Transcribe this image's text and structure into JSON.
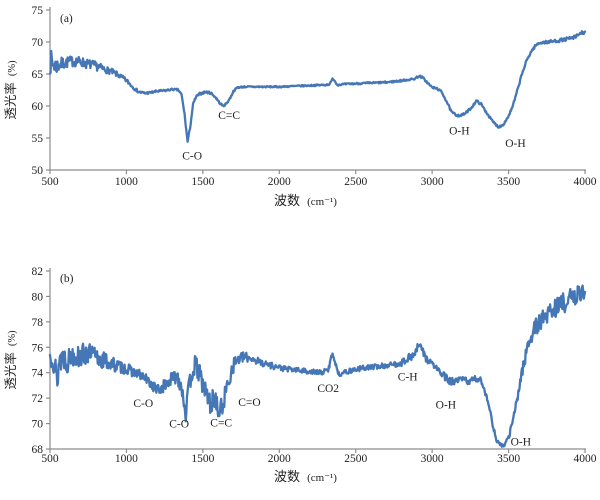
{
  "page": {
    "background": "#ffffff"
  },
  "chart_data": [
    {
      "type": "line",
      "panel_label": "(a)",
      "xlabel": "波数",
      "xlabel_unit": "(cm⁻¹)",
      "ylabel": "透光率",
      "ylabel_unit": "(%)",
      "xlim": [
        500,
        4000
      ],
      "ylim": [
        50,
        75
      ],
      "xticks": [
        500,
        1000,
        1500,
        2000,
        2500,
        3000,
        3500,
        4000
      ],
      "yticks": [
        50,
        55,
        60,
        65,
        70,
        75
      ],
      "line_color": "#4576b5",
      "axis_color": "#8c8c8c",
      "text_color": "#1f1f1f",
      "legend": "none",
      "grid": false,
      "annotations": [
        {
          "text": "C-O",
          "x": 1430,
          "y": 52.3
        },
        {
          "text": "C=C",
          "x": 1672,
          "y": 58.6
        },
        {
          "text": "O-H",
          "x": 3178,
          "y": 56.2
        },
        {
          "text": "O-H",
          "x": 3545,
          "y": 54.2
        }
      ],
      "keypoints": [
        [
          500,
          67.0
        ],
        [
          540,
          66.2
        ],
        [
          580,
          66.6
        ],
        [
          620,
          66.9
        ],
        [
          660,
          67.0
        ],
        [
          700,
          66.9
        ],
        [
          740,
          66.6
        ],
        [
          780,
          66.4
        ],
        [
          820,
          66.1
        ],
        [
          860,
          65.7
        ],
        [
          900,
          65.4
        ],
        [
          950,
          64.8
        ],
        [
          1000,
          64.0
        ],
        [
          1040,
          63.0
        ],
        [
          1080,
          62.2
        ],
        [
          1120,
          62.0
        ],
        [
          1160,
          62.1
        ],
        [
          1200,
          62.3
        ],
        [
          1250,
          62.4
        ],
        [
          1300,
          62.6
        ],
        [
          1340,
          62.5
        ],
        [
          1360,
          61.8
        ],
        [
          1380,
          58.8
        ],
        [
          1400,
          54.4
        ],
        [
          1418,
          56.8
        ],
        [
          1435,
          60.2
        ],
        [
          1455,
          61.4
        ],
        [
          1480,
          61.9
        ],
        [
          1520,
          62.2
        ],
        [
          1555,
          62.0
        ],
        [
          1585,
          61.3
        ],
        [
          1612,
          60.4
        ],
        [
          1635,
          60.0
        ],
        [
          1658,
          60.5
        ],
        [
          1680,
          61.3
        ],
        [
          1700,
          62.3
        ],
        [
          1725,
          62.9
        ],
        [
          1770,
          63.0
        ],
        [
          1900,
          63.0
        ],
        [
          2000,
          63.0
        ],
        [
          2100,
          63.1
        ],
        [
          2200,
          63.2
        ],
        [
          2300,
          63.3
        ],
        [
          2330,
          63.4
        ],
        [
          2350,
          64.3
        ],
        [
          2362,
          64.0
        ],
        [
          2378,
          63.3
        ],
        [
          2420,
          63.4
        ],
        [
          2500,
          63.5
        ],
        [
          2600,
          63.6
        ],
        [
          2700,
          63.7
        ],
        [
          2780,
          63.9
        ],
        [
          2840,
          64.1
        ],
        [
          2880,
          64.2
        ],
        [
          2915,
          64.7
        ],
        [
          2940,
          64.4
        ],
        [
          2970,
          63.6
        ],
        [
          3000,
          62.9
        ],
        [
          3035,
          62.7
        ],
        [
          3065,
          62.1
        ],
        [
          3095,
          60.7
        ],
        [
          3125,
          59.1
        ],
        [
          3155,
          58.6
        ],
        [
          3185,
          58.5
        ],
        [
          3215,
          58.8
        ],
        [
          3255,
          59.7
        ],
        [
          3290,
          60.8
        ],
        [
          3320,
          60.3
        ],
        [
          3355,
          59.0
        ],
        [
          3395,
          57.6
        ],
        [
          3435,
          56.7
        ],
        [
          3465,
          57.1
        ],
        [
          3495,
          58.2
        ],
        [
          3525,
          59.8
        ],
        [
          3555,
          62.2
        ],
        [
          3585,
          64.8
        ],
        [
          3615,
          66.9
        ],
        [
          3645,
          68.4
        ],
        [
          3675,
          69.4
        ],
        [
          3705,
          69.9
        ],
        [
          3760,
          70.0
        ],
        [
          3820,
          70.2
        ],
        [
          3870,
          70.4
        ],
        [
          3910,
          70.6
        ],
        [
          3940,
          70.8
        ],
        [
          3965,
          71.3
        ],
        [
          4000,
          71.6
        ]
      ],
      "noise": [
        [
          500,
          2.0
        ],
        [
          520,
          1.6
        ],
        [
          560,
          1.1
        ],
        [
          620,
          0.85
        ],
        [
          700,
          0.8
        ],
        [
          800,
          0.7
        ],
        [
          880,
          0.5
        ],
        [
          950,
          0.4
        ],
        [
          1020,
          0.3
        ],
        [
          1100,
          0.2
        ],
        [
          1300,
          0.15
        ],
        [
          1450,
          0.2
        ],
        [
          1700,
          0.12
        ],
        [
          2200,
          0.12
        ],
        [
          2800,
          0.15
        ],
        [
          3100,
          0.18
        ],
        [
          3500,
          0.18
        ],
        [
          3700,
          0.22
        ],
        [
          4000,
          0.3
        ]
      ]
    },
    {
      "type": "line",
      "panel_label": "(b)",
      "xlabel": "波数",
      "xlabel_unit": "(cm⁻¹)",
      "ylabel": "透光率",
      "ylabel_unit": "(%)",
      "xlim": [
        500,
        4000
      ],
      "ylim": [
        68,
        82
      ],
      "xticks": [
        500,
        1000,
        1500,
        2000,
        2500,
        3000,
        3500,
        4000
      ],
      "yticks": [
        68,
        70,
        72,
        74,
        76,
        78,
        80,
        82
      ],
      "line_color": "#4576b5",
      "axis_color": "#8c8c8c",
      "text_color": "#1f1f1f",
      "legend": "none",
      "grid": false,
      "annotations": [
        {
          "text": "C-O",
          "x": 1110,
          "y": 71.6
        },
        {
          "text": "C-O",
          "x": 1345,
          "y": 70.0
        },
        {
          "text": "C=C",
          "x": 1620,
          "y": 70.1
        },
        {
          "text": "C=O",
          "x": 1805,
          "y": 71.7
        },
        {
          "text": "CO2",
          "x": 2320,
          "y": 72.8
        },
        {
          "text": "C-H",
          "x": 2840,
          "y": 73.7
        },
        {
          "text": "O-H",
          "x": 3090,
          "y": 71.5
        },
        {
          "text": "O-H",
          "x": 3580,
          "y": 68.6
        }
      ],
      "keypoints": [
        [
          500,
          75.2
        ],
        [
          515,
          76.2
        ],
        [
          530,
          74.5
        ],
        [
          545,
          73.2
        ],
        [
          560,
          75.0
        ],
        [
          585,
          75.3
        ],
        [
          615,
          74.9
        ],
        [
          650,
          75.5
        ],
        [
          690,
          75.2
        ],
        [
          730,
          75.5
        ],
        [
          770,
          75.4
        ],
        [
          810,
          75.1
        ],
        [
          850,
          75.0
        ],
        [
          900,
          74.7
        ],
        [
          950,
          74.5
        ],
        [
          1000,
          74.3
        ],
        [
          1060,
          74.0
        ],
        [
          1120,
          73.6
        ],
        [
          1180,
          72.9
        ],
        [
          1210,
          72.6
        ],
        [
          1250,
          73.0
        ],
        [
          1290,
          73.4
        ],
        [
          1330,
          73.8
        ],
        [
          1360,
          73.0
        ],
        [
          1388,
          70.9
        ],
        [
          1405,
          72.3
        ],
        [
          1425,
          74.0
        ],
        [
          1448,
          74.6
        ],
        [
          1472,
          74.1
        ],
        [
          1500,
          73.1
        ],
        [
          1530,
          72.1
        ],
        [
          1552,
          71.4
        ],
        [
          1575,
          72.2
        ],
        [
          1600,
          70.9
        ],
        [
          1625,
          71.2
        ],
        [
          1648,
          72.4
        ],
        [
          1670,
          73.4
        ],
        [
          1695,
          74.5
        ],
        [
          1722,
          75.0
        ],
        [
          1760,
          75.2
        ],
        [
          1810,
          75.2
        ],
        [
          1860,
          74.9
        ],
        [
          1910,
          74.7
        ],
        [
          1970,
          74.5
        ],
        [
          2040,
          74.3
        ],
        [
          2120,
          74.2
        ],
        [
          2200,
          74.1
        ],
        [
          2270,
          74.0
        ],
        [
          2320,
          74.2
        ],
        [
          2348,
          75.6
        ],
        [
          2368,
          74.7
        ],
        [
          2388,
          73.9
        ],
        [
          2420,
          74.0
        ],
        [
          2480,
          74.2
        ],
        [
          2560,
          74.4
        ],
        [
          2650,
          74.5
        ],
        [
          2730,
          74.6
        ],
        [
          2800,
          74.8
        ],
        [
          2850,
          75.2
        ],
        [
          2885,
          75.4
        ],
        [
          2912,
          76.2
        ],
        [
          2935,
          75.8
        ],
        [
          2962,
          75.1
        ],
        [
          3000,
          74.7
        ],
        [
          3040,
          74.2
        ],
        [
          3080,
          73.7
        ],
        [
          3120,
          73.3
        ],
        [
          3160,
          73.3
        ],
        [
          3200,
          73.5
        ],
        [
          3240,
          73.3
        ],
        [
          3285,
          73.5
        ],
        [
          3315,
          73.5
        ],
        [
          3340,
          72.8
        ],
        [
          3368,
          71.6
        ],
        [
          3395,
          70.0
        ],
        [
          3420,
          68.7
        ],
        [
          3445,
          68.3
        ],
        [
          3475,
          68.3
        ],
        [
          3500,
          68.9
        ],
        [
          3530,
          70.3
        ],
        [
          3560,
          72.2
        ],
        [
          3590,
          74.2
        ],
        [
          3620,
          75.9
        ],
        [
          3650,
          77.0
        ],
        [
          3685,
          77.7
        ],
        [
          3720,
          78.2
        ],
        [
          3760,
          78.7
        ],
        [
          3800,
          79.1
        ],
        [
          3850,
          79.4
        ],
        [
          3900,
          79.8
        ],
        [
          3950,
          80.1
        ],
        [
          4000,
          80.5
        ]
      ],
      "noise": [
        [
          500,
          1.5
        ],
        [
          540,
          1.4
        ],
        [
          600,
          1.0
        ],
        [
          700,
          0.9
        ],
        [
          800,
          0.85
        ],
        [
          880,
          0.65
        ],
        [
          950,
          0.5
        ],
        [
          1050,
          0.4
        ],
        [
          1150,
          0.4
        ],
        [
          1250,
          0.5
        ],
        [
          1330,
          0.6
        ],
        [
          1400,
          0.9
        ],
        [
          1470,
          0.8
        ],
        [
          1550,
          0.9
        ],
        [
          1640,
          0.8
        ],
        [
          1700,
          0.6
        ],
        [
          1770,
          0.4
        ],
        [
          1850,
          0.3
        ],
        [
          1950,
          0.25
        ],
        [
          2100,
          0.2
        ],
        [
          2300,
          0.2
        ],
        [
          2500,
          0.2
        ],
        [
          2700,
          0.22
        ],
        [
          2850,
          0.3
        ],
        [
          2950,
          0.3
        ],
        [
          3100,
          0.3
        ],
        [
          3250,
          0.28
        ],
        [
          3400,
          0.2
        ],
        [
          3470,
          0.12
        ],
        [
          3560,
          0.4
        ],
        [
          3650,
          0.65
        ],
        [
          3750,
          0.75
        ],
        [
          3850,
          0.8
        ],
        [
          3950,
          0.75
        ],
        [
          4000,
          0.7
        ]
      ]
    }
  ]
}
